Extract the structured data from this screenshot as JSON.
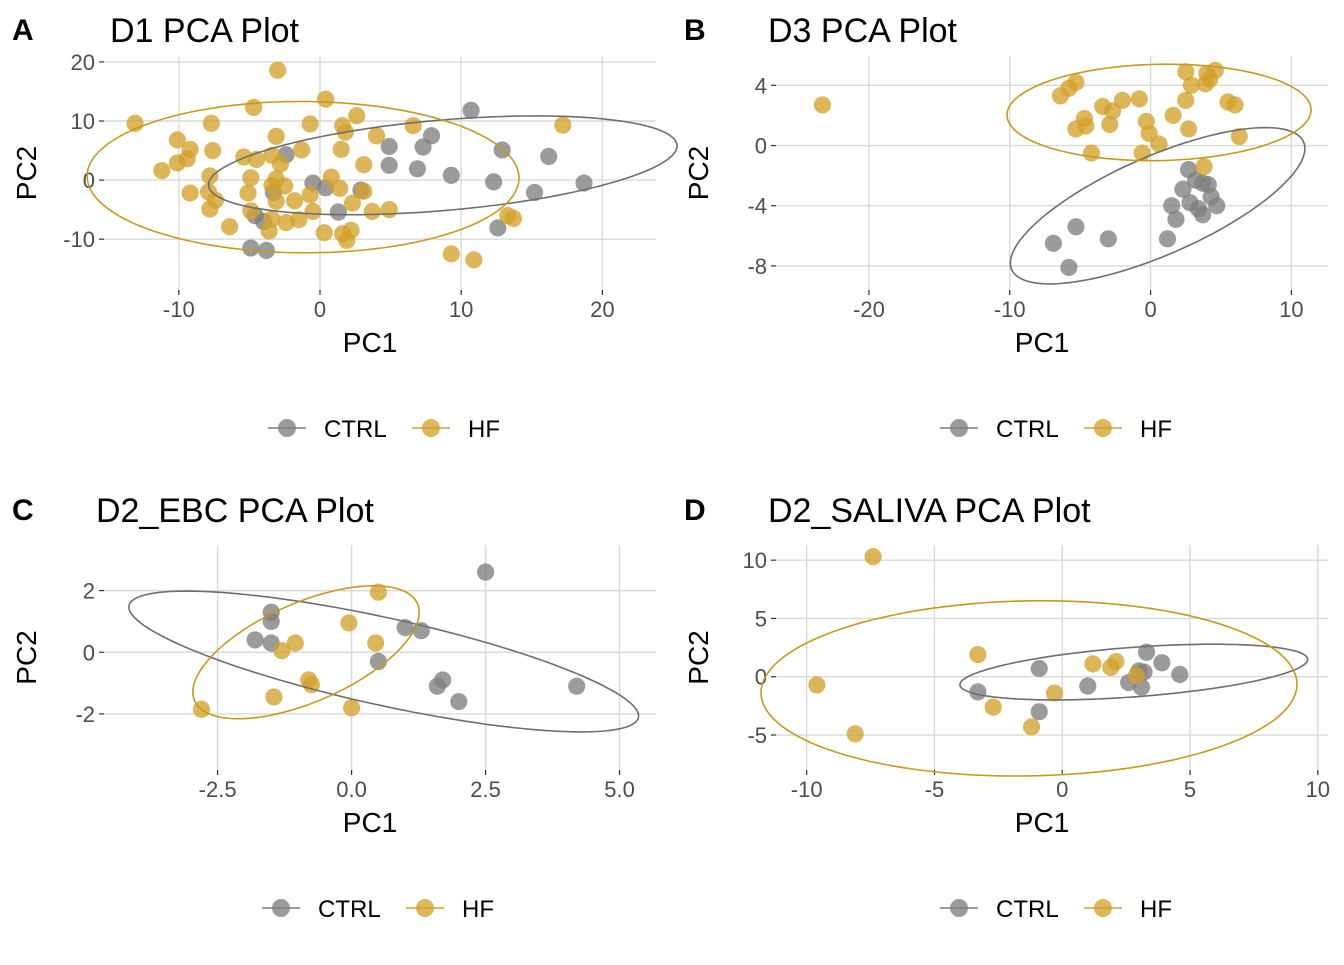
{
  "colors": {
    "CTRL": "#7f7f7f",
    "HF": "#d4a22a",
    "grid": "#d9d9d9",
    "text": "#000000",
    "tick": "#4d4d4d",
    "ctrl_ellipse": "#6e6e6e",
    "hf_ellipse": "#c8991a"
  },
  "chart_data": [
    {
      "tag": "A",
      "title": "D1 PCA Plot",
      "type": "scatter",
      "xlabel": "PC1",
      "ylabel": "PC2",
      "xlim": [
        -15.3,
        23.8
      ],
      "ylim": [
        -18.6,
        21.0
      ],
      "xticks": [
        -10,
        0,
        10,
        20
      ],
      "xticklabels": [
        "-10",
        "0",
        "10",
        "20"
      ],
      "yticks": [
        -10,
        0,
        10,
        20
      ],
      "yticklabels": [
        "-10",
        "0",
        "10",
        "20"
      ],
      "grid": true,
      "legend_position": "bottom",
      "series": [
        {
          "name": "CTRL",
          "points": [
            [
              10.7,
              11.8
            ],
            [
              7.9,
              7.5
            ],
            [
              4.9,
              5.7
            ],
            [
              7.3,
              5.6
            ],
            [
              12.9,
              5.1
            ],
            [
              16.2,
              4.0
            ],
            [
              -2.4,
              4.3
            ],
            [
              4.9,
              2.5
            ],
            [
              6.9,
              1.9
            ],
            [
              9.3,
              0.8
            ],
            [
              12.3,
              -0.3
            ],
            [
              18.7,
              -0.5
            ],
            [
              15.2,
              -2.1
            ],
            [
              -0.5,
              -0.5
            ],
            [
              0.4,
              -1.3
            ],
            [
              -3.3,
              -2.1
            ],
            [
              2.9,
              -1.7
            ],
            [
              1.3,
              -5.4
            ],
            [
              -4.6,
              -6.0
            ],
            [
              -4.0,
              -7.0
            ],
            [
              12.6,
              -8.1
            ],
            [
              -4.9,
              -11.5
            ],
            [
              -3.8,
              -11.9
            ]
          ]
        },
        {
          "name": "HF",
          "points": [
            [
              -3.0,
              18.6
            ],
            [
              0.4,
              13.7
            ],
            [
              -4.7,
              12.3
            ],
            [
              2.6,
              10.9
            ],
            [
              -13.1,
              9.6
            ],
            [
              -7.7,
              9.6
            ],
            [
              6.6,
              9.2
            ],
            [
              17.2,
              9.3
            ],
            [
              -0.7,
              9.5
            ],
            [
              1.6,
              9.2
            ],
            [
              -3.1,
              7.4
            ],
            [
              1.8,
              8.1
            ],
            [
              4.0,
              7.5
            ],
            [
              -10.1,
              6.8
            ],
            [
              -7.6,
              5.0
            ],
            [
              -9.2,
              5.2
            ],
            [
              -1.3,
              5.1
            ],
            [
              1.5,
              5.2
            ],
            [
              -3.4,
              4.2
            ],
            [
              -5.4,
              3.9
            ],
            [
              -4.5,
              3.5
            ],
            [
              -9.4,
              3.6
            ],
            [
              -10.1,
              2.9
            ],
            [
              -2.8,
              2.7
            ],
            [
              3.1,
              2.6
            ],
            [
              -11.2,
              1.6
            ],
            [
              -7.8,
              0.7
            ],
            [
              -4.9,
              0.4
            ],
            [
              -3.1,
              0.2
            ],
            [
              0.8,
              0.5
            ],
            [
              -3.4,
              -0.9
            ],
            [
              -2.5,
              -1.0
            ],
            [
              1.4,
              -1.4
            ],
            [
              3.1,
              -1.9
            ],
            [
              -9.2,
              -2.2
            ],
            [
              -7.9,
              -2.0
            ],
            [
              -5.1,
              -2.2
            ],
            [
              -1.8,
              -3.5
            ],
            [
              -0.7,
              -2.5
            ],
            [
              2.3,
              -3.9
            ],
            [
              -7.4,
              -3.4
            ],
            [
              -3.1,
              -3.6
            ],
            [
              -7.8,
              -4.9
            ],
            [
              -4.9,
              -5.2
            ],
            [
              -0.5,
              -5.3
            ],
            [
              3.7,
              -5.3
            ],
            [
              4.9,
              -5.0
            ],
            [
              -3.4,
              -6.6
            ],
            [
              -1.5,
              -6.7
            ],
            [
              -2.4,
              -7.2
            ],
            [
              -6.4,
              -7.9
            ],
            [
              -3.6,
              -8.6
            ],
            [
              0.3,
              -8.9
            ],
            [
              1.6,
              -9.1
            ],
            [
              2.2,
              -8.5
            ],
            [
              1.9,
              -10.2
            ],
            [
              13.7,
              -6.5
            ],
            [
              13.3,
              -6.0
            ],
            [
              9.3,
              -12.5
            ],
            [
              10.9,
              -13.5
            ]
          ]
        }
      ],
      "ellipses": [
        {
          "group": "CTRL",
          "cx": 8.7,
          "cy": 2.5,
          "rx": 17.0,
          "ry": 7.5,
          "angle": 14
        },
        {
          "group": "HF",
          "cx": -1.2,
          "cy": 0.5,
          "rx": 15.3,
          "ry": 12.8,
          "angle": -2
        }
      ]
    },
    {
      "tag": "B",
      "title": "D3 PCA Plot",
      "type": "scatter",
      "xlabel": "PC1",
      "ylabel": "PC2",
      "xlim": [
        -26.6,
        12.6
      ],
      "ylim": [
        -9.6,
        5.95
      ],
      "xticks": [
        -20,
        -10,
        0,
        10
      ],
      "xticklabels": [
        "-20",
        "-10",
        "0",
        "10"
      ],
      "yticks": [
        -8,
        -4,
        0,
        4
      ],
      "yticklabels": [
        "-8",
        "-4",
        "0",
        "4"
      ],
      "grid": true,
      "legend_position": "bottom",
      "series": [
        {
          "name": "CTRL",
          "points": [
            [
              2.7,
              -1.6
            ],
            [
              3.2,
              -2.3
            ],
            [
              2.3,
              -2.9
            ],
            [
              3.7,
              -2.5
            ],
            [
              4.1,
              -2.6
            ],
            [
              4.3,
              -3.4
            ],
            [
              1.5,
              -4.0
            ],
            [
              2.8,
              -3.8
            ],
            [
              3.4,
              -4.2
            ],
            [
              4.7,
              -4.0
            ],
            [
              3.7,
              -4.6
            ],
            [
              1.8,
              -4.9
            ],
            [
              -5.3,
              -5.4
            ],
            [
              -3.0,
              -6.2
            ],
            [
              1.2,
              -6.2
            ],
            [
              -6.9,
              -6.5
            ],
            [
              -5.8,
              -8.1
            ]
          ]
        },
        {
          "name": "HF",
          "points": [
            [
              -23.3,
              2.7
            ],
            [
              -5.3,
              4.2
            ],
            [
              -5.8,
              3.8
            ],
            [
              -6.4,
              3.3
            ],
            [
              -2.0,
              3.0
            ],
            [
              -0.8,
              3.1
            ],
            [
              2.5,
              4.9
            ],
            [
              4.0,
              4.8
            ],
            [
              4.6,
              5.0
            ],
            [
              4.2,
              4.4
            ],
            [
              3.9,
              4.1
            ],
            [
              2.9,
              4.0
            ],
            [
              2.5,
              3.0
            ],
            [
              5.5,
              2.9
            ],
            [
              6.0,
              2.7
            ],
            [
              -3.4,
              2.6
            ],
            [
              -2.7,
              2.3
            ],
            [
              1.6,
              2.0
            ],
            [
              -4.7,
              1.8
            ],
            [
              -4.6,
              1.3
            ],
            [
              -2.9,
              1.4
            ],
            [
              -0.3,
              1.6
            ],
            [
              -5.3,
              1.1
            ],
            [
              -0.1,
              0.8
            ],
            [
              2.7,
              1.1
            ],
            [
              6.3,
              0.6
            ],
            [
              0.6,
              0.1
            ],
            [
              -4.2,
              -0.5
            ],
            [
              -0.6,
              -0.5
            ],
            [
              3.8,
              -1.4
            ]
          ]
        }
      ],
      "ellipses": [
        {
          "group": "CTRL",
          "cx": 0.5,
          "cy": -4.0,
          "rx": 11.2,
          "ry": 3.3,
          "angle": 22
        },
        {
          "group": "HF",
          "cx": 0.6,
          "cy": 2.2,
          "rx": 10.8,
          "ry": 3.2,
          "angle": 1
        }
      ]
    },
    {
      "tag": "C",
      "title": "D2_EBC PCA Plot",
      "type": "scatter",
      "xlabel": "PC1",
      "ylabel": "PC2",
      "xlim": [
        -4.62,
        5.68
      ],
      "ylim": [
        -3.82,
        3.48
      ],
      "xticks": [
        -2.5,
        0,
        2.5,
        5
      ],
      "xticklabels": [
        "-2.5",
        "0.0",
        "2.5",
        "5.0"
      ],
      "yticks": [
        -2,
        0,
        2
      ],
      "yticklabels": [
        "-2",
        "0",
        "2"
      ],
      "grid": true,
      "legend_position": "bottom",
      "series": [
        {
          "name": "CTRL",
          "points": [
            [
              2.5,
              2.6
            ],
            [
              -1.5,
              1.3
            ],
            [
              -1.5,
              1.0
            ],
            [
              1.0,
              0.8
            ],
            [
              1.3,
              0.7
            ],
            [
              -1.8,
              0.4
            ],
            [
              -1.5,
              0.3
            ],
            [
              0.5,
              -0.3
            ],
            [
              1.7,
              -0.9
            ],
            [
              1.6,
              -1.1
            ],
            [
              4.2,
              -1.1
            ],
            [
              2.0,
              -1.6
            ]
          ]
        },
        {
          "name": "HF",
          "points": [
            [
              0.5,
              1.95
            ],
            [
              -0.05,
              0.95
            ],
            [
              0.45,
              0.3
            ],
            [
              -1.05,
              0.3
            ],
            [
              -1.3,
              0.05
            ],
            [
              -0.8,
              -0.9
            ],
            [
              -0.75,
              -1.05
            ],
            [
              -1.45,
              -1.45
            ],
            [
              0.0,
              -1.8
            ],
            [
              -2.8,
              -1.85
            ]
          ]
        }
      ],
      "ellipses": [
        {
          "group": "CTRL",
          "cx": 0.6,
          "cy": -0.3,
          "rx": 5.1,
          "ry": 1.35,
          "angle": -22
        },
        {
          "group": "HF",
          "cx": -0.85,
          "cy": 0.0,
          "rx": 2.7,
          "ry": 1.35,
          "angle": 46
        }
      ]
    },
    {
      "tag": "D",
      "title": "D2_SALIVA PCA Plot",
      "type": "scatter",
      "xlabel": "PC1",
      "ylabel": "PC2",
      "xlim": [
        -11.2,
        10.4
      ],
      "ylim": [
        -8.0,
        11.3
      ],
      "xticks": [
        -10,
        -5,
        0,
        5,
        10
      ],
      "xticklabels": [
        "-10",
        "-5",
        "0",
        "5",
        "10"
      ],
      "yticks": [
        -5,
        0,
        5,
        10
      ],
      "yticklabels": [
        "-5",
        "0",
        "5",
        "10"
      ],
      "grid": true,
      "legend_position": "bottom",
      "series": [
        {
          "name": "CTRL",
          "points": [
            [
              3.3,
              2.1
            ],
            [
              3.9,
              1.2
            ],
            [
              -0.9,
              0.7
            ],
            [
              4.6,
              0.2
            ],
            [
              3.0,
              0.5
            ],
            [
              3.2,
              0.4
            ],
            [
              -3.3,
              -1.3
            ],
            [
              -0.9,
              -3.0
            ],
            [
              2.6,
              -0.5
            ],
            [
              3.1,
              -0.9
            ],
            [
              1.0,
              -0.8
            ]
          ]
        },
        {
          "name": "HF",
          "points": [
            [
              -7.4,
              10.3
            ],
            [
              -3.3,
              1.9
            ],
            [
              1.2,
              1.1
            ],
            [
              2.1,
              1.3
            ],
            [
              1.9,
              0.8
            ],
            [
              2.9,
              0.1
            ],
            [
              -9.6,
              -0.7
            ],
            [
              -0.3,
              -1.4
            ],
            [
              -2.7,
              -2.6
            ],
            [
              -1.2,
              -4.3
            ],
            [
              -8.1,
              -4.9
            ]
          ]
        }
      ],
      "ellipses": [
        {
          "group": "CTRL",
          "cx": 2.8,
          "cy": 0.4,
          "rx": 6.9,
          "ry": 2.1,
          "angle": 10
        },
        {
          "group": "HF",
          "cx": -1.3,
          "cy": -1.0,
          "rx": 10.5,
          "ry": 7.5,
          "angle": 4
        }
      ]
    }
  ]
}
